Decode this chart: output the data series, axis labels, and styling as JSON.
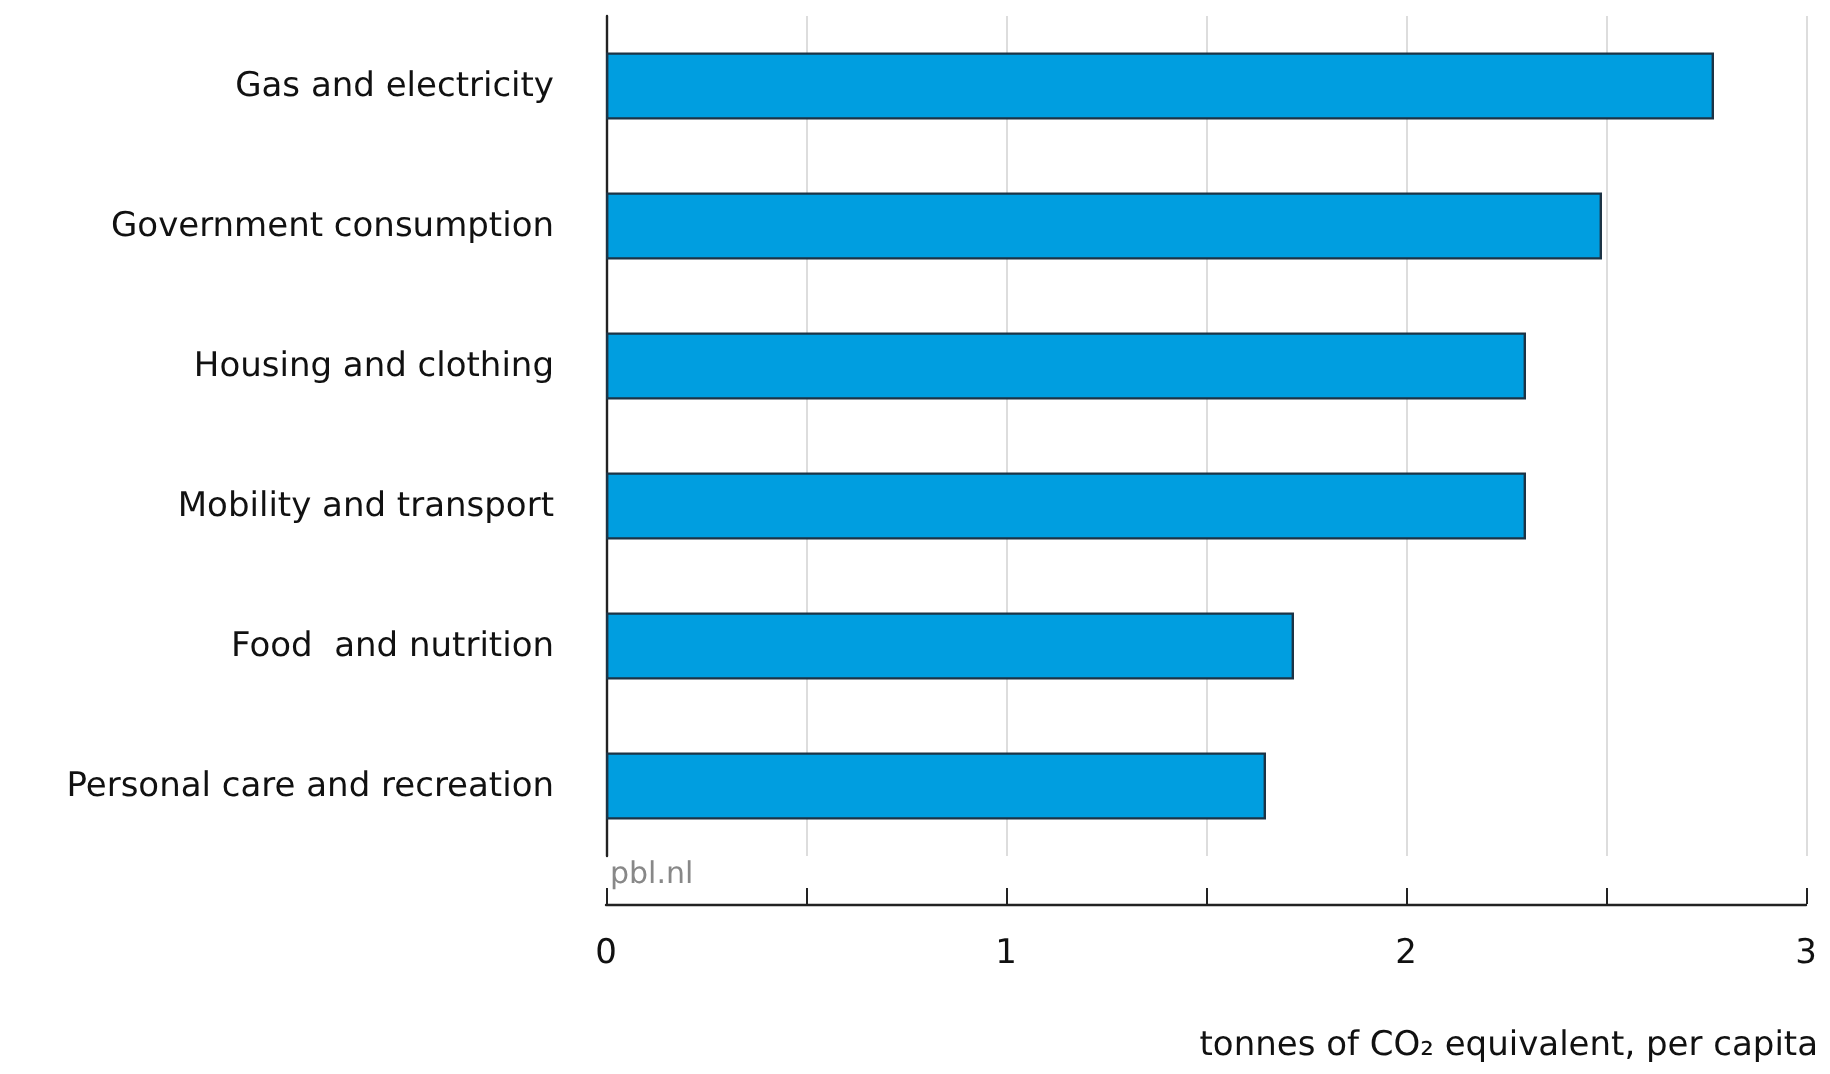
{
  "chart_data": {
    "type": "bar",
    "orientation": "horizontal",
    "categories": [
      "Gas and electricity",
      "Government consumption",
      "Housing and clothing",
      "Mobility and transport",
      "Food  and nutrition",
      "Personal care and recreation"
    ],
    "values": [
      2.77,
      2.49,
      2.3,
      2.3,
      1.72,
      1.65
    ],
    "color": "#009ee0",
    "xlim": [
      0,
      3
    ],
    "xticks": [
      0,
      {
        "value": 0.5,
        "label": null
      },
      1,
      {
        "value": 1.5,
        "label": null
      },
      2,
      {
        "value": 2.5,
        "label": null
      },
      3
    ],
    "xlabel": "tonnes of CO₂ equivalent, per capita",
    "grid": "x",
    "annotations": [
      "pbl.nl"
    ]
  }
}
